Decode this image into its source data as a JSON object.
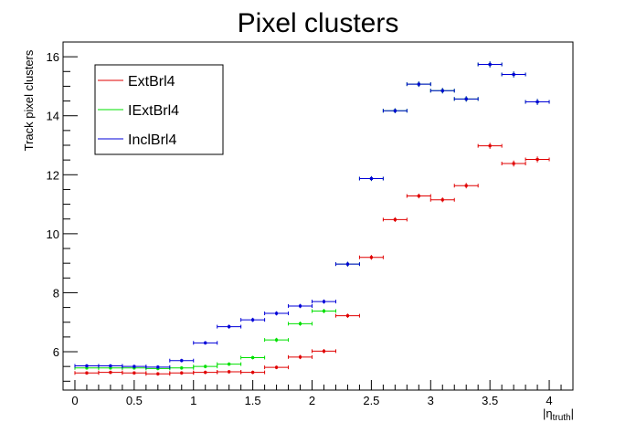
{
  "chart_data": {
    "type": "scatter",
    "title": "Pixel clusters",
    "xlabel": "|η_truth|",
    "xlabel_main": "|η",
    "xlabel_sub": "truth",
    "xlabel_close": "|",
    "ylabel": "Track pixel clusters",
    "xlim": [
      -0.1,
      4.2
    ],
    "ylim": [
      4.7,
      16.5
    ],
    "x_ticks": [
      0,
      0.5,
      1,
      1.5,
      2,
      2.5,
      3,
      3.5,
      4
    ],
    "x_tick_labels": [
      "0",
      "0.5",
      "1",
      "1.5",
      "2",
      "2.5",
      "3",
      "3.5",
      "4"
    ],
    "y_ticks": [
      6,
      8,
      10,
      12,
      14,
      16
    ],
    "y_tick_labels": [
      "6",
      "8",
      "10",
      "12",
      "14",
      "16"
    ],
    "legend_position": "top-left",
    "x": [
      0.05,
      0.15,
      0.25,
      0.35,
      0.45,
      0.55,
      0.65,
      0.75,
      0.85,
      0.95,
      1.05,
      1.15,
      1.25,
      1.35,
      1.45,
      1.55,
      1.65,
      1.75,
      1.85,
      1.95,
      2.05,
      2.15,
      2.25,
      2.35
    ],
    "x_bin_half_width": 0.05,
    "series": [
      {
        "name": "ExtBrl4",
        "color": "#e00000",
        "x": [
          0.1,
          0.3,
          0.5,
          0.7,
          0.9,
          1.1,
          1.3,
          1.5,
          1.7,
          1.9,
          2.1,
          2.3,
          2.5,
          2.7,
          2.9,
          3.1,
          3.3,
          3.5,
          3.7,
          3.9
        ],
        "x_err": 0.1,
        "values": [
          5.28,
          5.3,
          5.28,
          5.25,
          5.28,
          5.3,
          5.32,
          5.3,
          5.47,
          5.82,
          6.02,
          7.22,
          9.2,
          10.48,
          11.28,
          11.15,
          11.63,
          12.98,
          12.38,
          12.52
        ],
        "y_err": [
          0.03,
          0.03,
          0.03,
          0.03,
          0.03,
          0.03,
          0.03,
          0.03,
          0.03,
          0.04,
          0.04,
          0.04,
          0.05,
          0.05,
          0.05,
          0.05,
          0.06,
          0.07,
          0.07,
          0.07
        ]
      },
      {
        "name": "IExtBrl4",
        "color": "#00e000",
        "x": [
          0.1,
          0.3,
          0.5,
          0.7,
          0.9,
          1.1,
          1.3,
          1.5,
          1.7,
          1.9,
          2.1,
          2.3,
          2.5,
          2.7,
          2.9,
          3.1,
          3.3,
          3.5,
          3.7,
          3.9
        ],
        "x_err": 0.1,
        "values": [
          5.45,
          5.45,
          5.45,
          5.43,
          5.45,
          5.5,
          5.58,
          5.8,
          6.4,
          6.95,
          7.38,
          8.97,
          11.87,
          14.17,
          15.07,
          14.85,
          14.57,
          15.74,
          15.4,
          14.47
        ],
        "y_err": [
          0.03,
          0.03,
          0.03,
          0.03,
          0.03,
          0.03,
          0.03,
          0.03,
          0.04,
          0.04,
          0.04,
          0.05,
          0.05,
          0.05,
          0.06,
          0.06,
          0.06,
          0.07,
          0.07,
          0.07
        ]
      },
      {
        "name": "InclBrl4",
        "color": "#0000d8",
        "x": [
          0.1,
          0.3,
          0.5,
          0.7,
          0.9,
          1.1,
          1.3,
          1.5,
          1.7,
          1.9,
          2.1,
          2.3,
          2.5,
          2.7,
          2.9,
          3.1,
          3.3,
          3.5,
          3.7,
          3.9
        ],
        "x_err": 0.1,
        "values": [
          5.52,
          5.52,
          5.5,
          5.48,
          5.7,
          6.3,
          6.85,
          7.08,
          7.3,
          7.55,
          7.7,
          8.97,
          11.87,
          14.17,
          15.07,
          14.85,
          14.57,
          15.74,
          15.4,
          14.47
        ],
        "y_err": [
          0.03,
          0.03,
          0.03,
          0.03,
          0.03,
          0.03,
          0.04,
          0.04,
          0.04,
          0.04,
          0.04,
          0.05,
          0.05,
          0.05,
          0.06,
          0.06,
          0.06,
          0.07,
          0.07,
          0.07
        ]
      }
    ]
  }
}
